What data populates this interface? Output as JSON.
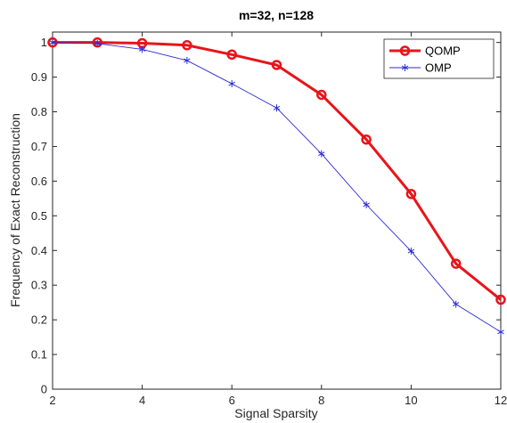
{
  "chart_data": {
    "type": "line",
    "title": "m=32, n=128",
    "xlabel": "Signal Sparsity",
    "ylabel": "Frequency of Exact Reconstruction",
    "xlim": [
      2,
      12
    ],
    "ylim": [
      0,
      1.03
    ],
    "xticks": [
      2,
      4,
      6,
      8,
      10,
      12
    ],
    "yticks": [
      0,
      0.1,
      0.2,
      0.3,
      0.4,
      0.5,
      0.6,
      0.7,
      0.8,
      0.9,
      1
    ],
    "grid": false,
    "legend_position": "top-right",
    "x": [
      2,
      3,
      4,
      5,
      6,
      7,
      8,
      9,
      10,
      11,
      12
    ],
    "series": [
      {
        "name": "QOMP",
        "color": "#e8141a",
        "marker": "circle",
        "values": [
          1.0,
          1.0,
          0.998,
          0.992,
          0.965,
          0.935,
          0.849,
          0.72,
          0.563,
          0.362,
          0.258
        ]
      },
      {
        "name": "OMP",
        "color": "#2b2bd9",
        "marker": "asterisk",
        "values": [
          1.0,
          0.997,
          0.98,
          0.948,
          0.881,
          0.811,
          0.679,
          0.532,
          0.398,
          0.245,
          0.165
        ]
      }
    ]
  }
}
